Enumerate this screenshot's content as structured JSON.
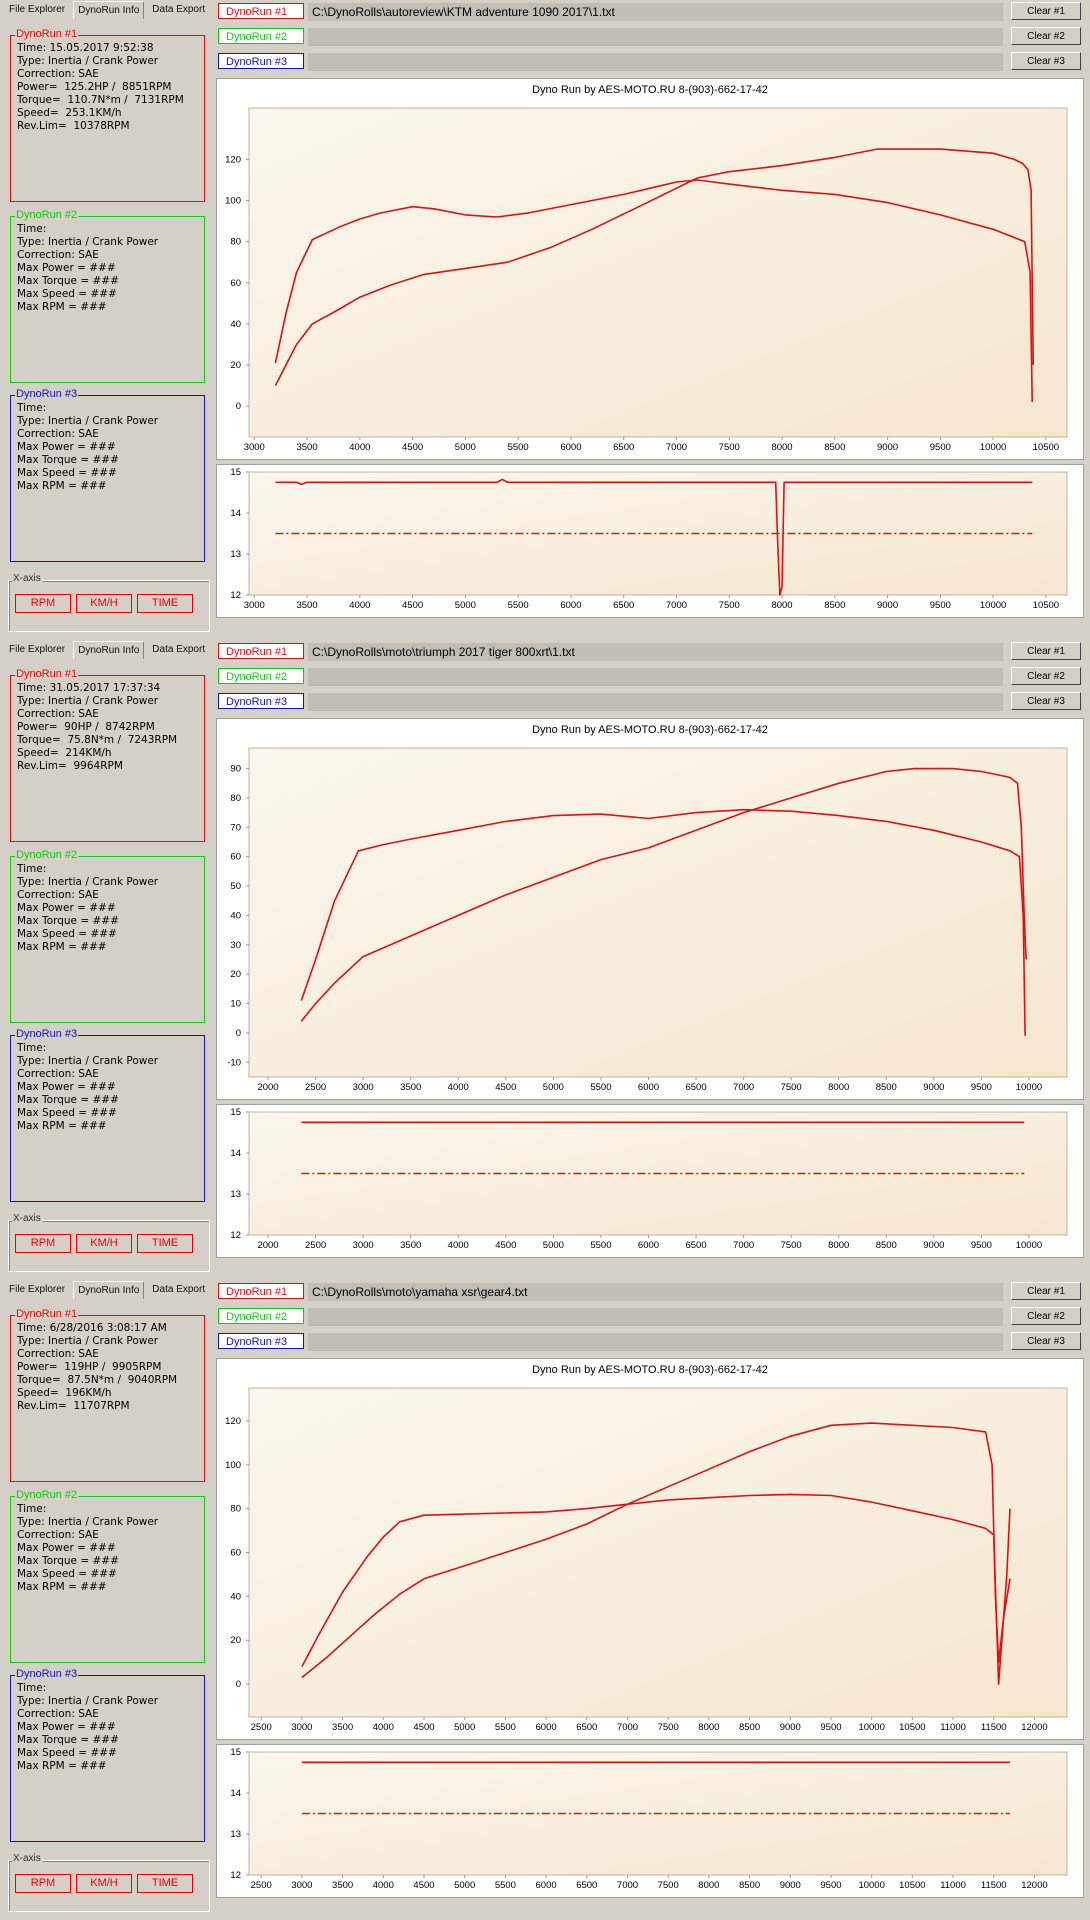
{
  "colors": {
    "run1": "#e01010",
    "run2": "#14c814",
    "run3": "#1414b4",
    "curve": "#e01010",
    "plot_bg_top": "#fbf7ee",
    "plot_bg_bottom": "#f5e6cf"
  },
  "tabs": [
    "File Explorer",
    "DynoRun Info",
    "Data Export"
  ],
  "xaxis": {
    "title": "X-axis",
    "buttons": [
      "RPM",
      "KM/H",
      "TIME"
    ]
  },
  "clear_buttons": [
    "Clear #1",
    "Clear #2",
    "Clear #3"
  ],
  "run_labels": [
    "DynoRun #1",
    "DynoRun #2",
    "DynoRun #3"
  ],
  "empty_run_info": [
    "Time:",
    "Type: Inertia / Crank Power",
    "Correction: SAE",
    "Max Power = ###",
    "Max Torque = ###",
    "Max Speed = ###",
    "Max RPM = ###"
  ],
  "panels": [
    {
      "run1_info": [
        "Time: 15.05.2017 9:52:38",
        "Type: Inertia / Crank Power",
        "Correction: SAE",
        "Power=  125.2HP /  8851RPM",
        "Torque=  110.7N*m /  7131RPM",
        "Speed=  253.1KM/h",
        "Rev.Lim=  10378RPM"
      ],
      "run1_path": "C:\\DynoRolls\\autoreview\\KTM adventure 1090 2017\\1.txt",
      "chart_title": "Dyno Run by AES-MOTO.RU    8-(903)-662-17-42"
    },
    {
      "run1_info": [
        "Time: 31.05.2017 17:37:34",
        "Type: Inertia / Crank Power",
        "Correction: SAE",
        "Power=  90HP /  8742RPM",
        "Torque=  75.8N*m /  7243RPM",
        "Speed=  214KM/h",
        "Rev.Lim=  9964RPM"
      ],
      "run1_path": "C:\\DynoRolls\\moto\\triumph 2017 tiger 800xrt\\1.txt",
      "chart_title": "Dyno Run by AES-MOTO.RU    8-(903)-662-17-42"
    },
    {
      "run1_info": [
        "Time: 6/28/2016 3:08:17 AM",
        "Type: Inertia / Crank Power",
        "Correction: SAE",
        "Power=  119HP /  9905RPM",
        "Torque=  87.5N*m /  9040RPM",
        "Speed=  196KM/h",
        "Rev.Lim=  11707RPM"
      ],
      "run1_path": "C:\\DynoRolls\\moto\\yamaha xsr\\gear4.txt",
      "chart_title": "Dyno Run by AES-MOTO.RU    8-(903)-662-17-42"
    }
  ],
  "chart_data": [
    {
      "type": "line",
      "panel": 1,
      "chart": "main",
      "xlim": [
        2950,
        10700
      ],
      "ylim": [
        -15,
        145
      ],
      "x_ticks": [
        3000,
        3500,
        4000,
        4500,
        5000,
        5500,
        6000,
        6500,
        7000,
        7500,
        8000,
        8500,
        9000,
        9500,
        10000,
        10500
      ],
      "y_ticks": [
        0,
        20,
        40,
        60,
        80,
        100,
        120
      ],
      "series": [
        {
          "x": [
            3200,
            3300,
            3400,
            3550,
            3800,
            4000,
            4200,
            4500,
            4700,
            5000,
            5300,
            5600,
            6000,
            6500,
            7000,
            7200,
            7500,
            8000,
            8500,
            9000,
            9500,
            10000,
            10200,
            10300,
            10350,
            10370
          ],
          "y": [
            21,
            45,
            65,
            81,
            87,
            91,
            94,
            97,
            96,
            93,
            92,
            94,
            98,
            103,
            109,
            110,
            108,
            105,
            103,
            99,
            93,
            86,
            82,
            80,
            65,
            2
          ]
        },
        {
          "x": [
            3200,
            3300,
            3400,
            3550,
            3800,
            4000,
            4300,
            4600,
            5000,
            5400,
            5800,
            6200,
            6600,
            7000,
            7200,
            7500,
            8000,
            8500,
            8900,
            9500,
            10000,
            10200,
            10280,
            10330,
            10360,
            10370,
            10380
          ],
          "y": [
            10,
            20,
            30,
            40,
            47,
            53,
            59,
            64,
            67,
            70,
            77,
            86,
            96,
            106,
            111,
            114,
            117,
            121,
            125,
            125,
            123,
            120,
            118,
            115,
            105,
            60,
            20
          ]
        }
      ]
    },
    {
      "type": "line",
      "panel": 1,
      "chart": "sub",
      "xlim": [
        2950,
        10700
      ],
      "ylim": [
        12,
        15
      ],
      "x_ticks": [
        3000,
        3500,
        4000,
        4500,
        5000,
        5500,
        6000,
        6500,
        7000,
        7500,
        8000,
        8500,
        9000,
        9500,
        10000,
        10500
      ],
      "y_ticks": [
        12,
        13,
        14,
        15
      ],
      "series": [
        {
          "x": [
            3200,
            3400,
            3450,
            3500,
            5300,
            5350,
            5400,
            7940,
            7960,
            7980,
            8000,
            8020,
            8040,
            10370
          ],
          "y": [
            14.75,
            14.75,
            14.7,
            14.75,
            14.75,
            14.82,
            14.75,
            14.75,
            13.2,
            12.0,
            12.2,
            14.75,
            14.75,
            14.75
          ]
        },
        {
          "x": [
            3200,
            10370
          ],
          "y": [
            13.5,
            13.5
          ],
          "dash": true
        }
      ]
    },
    {
      "type": "line",
      "panel": 2,
      "chart": "main",
      "xlim": [
        1800,
        10400
      ],
      "ylim": [
        -15,
        97
      ],
      "x_ticks": [
        2000,
        2500,
        3000,
        3500,
        4000,
        4500,
        5000,
        5500,
        6000,
        6500,
        7000,
        7500,
        8000,
        8500,
        9000,
        9500,
        10000
      ],
      "y_ticks": [
        -10,
        0,
        10,
        20,
        30,
        40,
        50,
        60,
        70,
        80,
        90
      ],
      "series": [
        {
          "x": [
            2350,
            2500,
            2700,
            2950,
            3200,
            3500,
            4000,
            4500,
            5000,
            5500,
            6000,
            6500,
            7000,
            7500,
            8000,
            8500,
            9000,
            9500,
            9800,
            9900,
            9940,
            9960
          ],
          "y": [
            11,
            25,
            45,
            62,
            64,
            66,
            69,
            72,
            74,
            74.5,
            73,
            75,
            76,
            75.5,
            74,
            72,
            69,
            65,
            62,
            60,
            40,
            -1
          ]
        },
        {
          "x": [
            2350,
            2500,
            2700,
            3000,
            3500,
            4000,
            4500,
            5000,
            5500,
            6000,
            6500,
            7000,
            7500,
            8000,
            8500,
            8800,
            9200,
            9500,
            9800,
            9880,
            9920,
            9950,
            9970
          ],
          "y": [
            4,
            10,
            17,
            26,
            33,
            40,
            47,
            53,
            59,
            63,
            69,
            75,
            80,
            85,
            89,
            90,
            90,
            89,
            87,
            85,
            70,
            40,
            25
          ]
        }
      ]
    },
    {
      "type": "line",
      "panel": 2,
      "chart": "sub",
      "xlim": [
        1800,
        10400
      ],
      "ylim": [
        12,
        15
      ],
      "x_ticks": [
        2000,
        2500,
        3000,
        3500,
        4000,
        4500,
        5000,
        5500,
        6000,
        6500,
        7000,
        7500,
        8000,
        8500,
        9000,
        9500,
        10000
      ],
      "y_ticks": [
        12,
        13,
        14,
        15
      ],
      "series": [
        {
          "x": [
            2350,
            9950
          ],
          "y": [
            14.75,
            14.75
          ]
        },
        {
          "x": [
            2350,
            9950
          ],
          "y": [
            13.5,
            13.5
          ],
          "dash": true
        }
      ]
    },
    {
      "type": "line",
      "panel": 3,
      "chart": "main",
      "xlim": [
        2350,
        12400
      ],
      "ylim": [
        -15,
        135
      ],
      "x_ticks": [
        2500,
        3000,
        3500,
        4000,
        4500,
        5000,
        5500,
        6000,
        6500,
        7000,
        7500,
        8000,
        8500,
        9000,
        9500,
        10000,
        10500,
        11000,
        11500,
        12000
      ],
      "y_ticks": [
        0,
        20,
        40,
        60,
        80,
        100,
        120
      ],
      "series": [
        {
          "x": [
            3000,
            3200,
            3500,
            3800,
            4000,
            4200,
            4500,
            5000,
            5500,
            6000,
            6500,
            7000,
            7500,
            8000,
            8500,
            9000,
            9500,
            10000,
            10500,
            11000,
            11400,
            11500,
            11560,
            11600,
            11660,
            11700
          ],
          "y": [
            8,
            22,
            42,
            58,
            67,
            74,
            77,
            77.5,
            78,
            78.5,
            80,
            82,
            84,
            85,
            86,
            86.5,
            86,
            83,
            79,
            75,
            71,
            68,
            0,
            20,
            50,
            80
          ]
        },
        {
          "x": [
            3000,
            3300,
            3600,
            3900,
            4200,
            4500,
            5000,
            5500,
            6000,
            6500,
            7000,
            7500,
            8000,
            8500,
            9000,
            9500,
            10000,
            10500,
            11000,
            11400,
            11480,
            11520,
            11560,
            11620,
            11700
          ],
          "y": [
            3,
            12,
            22,
            32,
            41,
            48,
            54,
            60,
            66,
            73,
            82,
            90,
            98,
            106,
            113,
            118,
            119,
            118,
            117,
            115,
            100,
            40,
            10,
            30,
            48
          ]
        }
      ]
    },
    {
      "type": "line",
      "panel": 3,
      "chart": "sub",
      "xlim": [
        2350,
        12400
      ],
      "ylim": [
        12,
        15
      ],
      "x_ticks": [
        2500,
        3000,
        3500,
        4000,
        4500,
        5000,
        5500,
        6000,
        6500,
        7000,
        7500,
        8000,
        8500,
        9000,
        9500,
        10000,
        10500,
        11000,
        11500,
        12000
      ],
      "y_ticks": [
        12,
        13,
        14,
        15
      ],
      "series": [
        {
          "x": [
            3000,
            11700
          ],
          "y": [
            14.75,
            14.75
          ]
        },
        {
          "x": [
            3000,
            11700
          ],
          "y": [
            13.5,
            13.5
          ],
          "dash": true
        }
      ]
    }
  ]
}
